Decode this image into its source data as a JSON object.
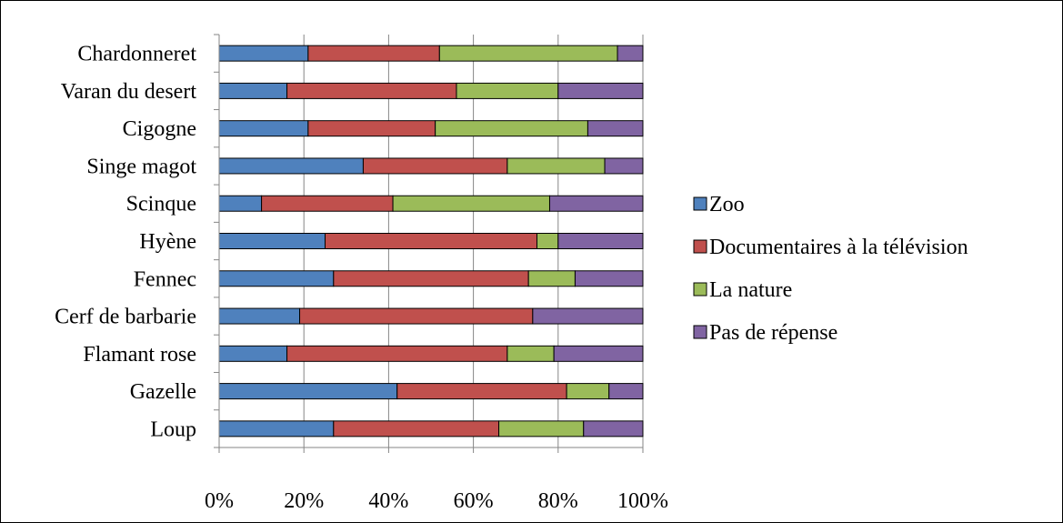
{
  "chart_data": {
    "type": "bar",
    "orientation": "horizontal",
    "stacked": true,
    "normalized_percent": true,
    "categories": [
      "Chardonneret",
      "Varan du desert",
      "Cigogne",
      "Singe magot",
      "Scinque",
      "Hyène",
      "Fennec",
      "Cerf de barbarie",
      "Flamant rose",
      "Gazelle",
      "Loup"
    ],
    "series": [
      {
        "name": "Zoo",
        "color": "#4F81BD",
        "values": [
          21,
          16,
          21,
          34,
          10,
          25,
          27,
          19,
          16,
          42,
          27
        ]
      },
      {
        "name": "Documentaires à la télévision",
        "color": "#C0504D",
        "values": [
          31,
          40,
          30,
          34,
          31,
          50,
          46,
          55,
          52,
          40,
          39
        ]
      },
      {
        "name": "La nature",
        "color": "#9BBB59",
        "values": [
          42,
          24,
          36,
          23,
          37,
          5,
          11,
          0,
          11,
          10,
          20
        ]
      },
      {
        "name": "Pas de répense",
        "color": "#8064A2",
        "values": [
          6,
          20,
          13,
          9,
          22,
          20,
          16,
          26,
          21,
          8,
          14
        ]
      }
    ],
    "x_ticks": [
      "0%",
      "20%",
      "40%",
      "60%",
      "80%",
      "100%"
    ],
    "xlim": [
      0,
      100
    ],
    "title": "",
    "xlabel": "",
    "ylabel": "",
    "grid": "vertical",
    "legend_position": "right"
  }
}
